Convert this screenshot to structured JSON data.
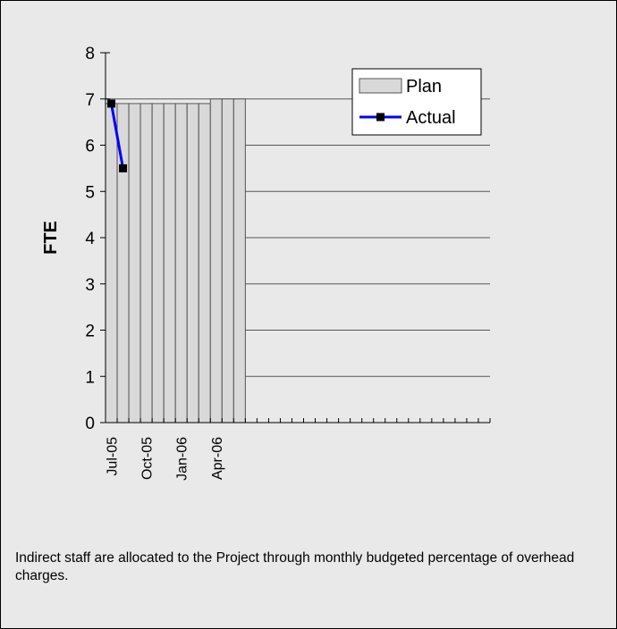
{
  "chart_data": {
    "type": "bar",
    "y_label": "FTE",
    "categories": [
      "Jul-05",
      null,
      null,
      "Oct-05",
      null,
      null,
      "Jan-06",
      null,
      null,
      "Apr-06",
      null,
      null,
      null,
      null,
      null,
      null,
      null,
      null,
      null,
      null,
      null,
      null,
      null,
      null,
      null,
      null,
      null,
      null,
      null,
      null,
      null,
      null,
      null
    ],
    "series": [
      {
        "name": "Plan",
        "type": "bar",
        "color": "#d9d9d9",
        "values": [
          6.9,
          6.9,
          6.9,
          6.9,
          6.9,
          6.9,
          6.9,
          6.9,
          6.9,
          7.0,
          7.0,
          7.0,
          null,
          null,
          null,
          null,
          null,
          null,
          null,
          null,
          null,
          null,
          null,
          null,
          null,
          null,
          null,
          null,
          null,
          null,
          null,
          null,
          null
        ]
      },
      {
        "name": "Actual",
        "type": "line",
        "color": "#0000ff",
        "values": [
          6.9,
          5.5,
          null,
          null,
          null,
          null,
          null,
          null,
          null,
          null,
          null,
          null,
          null,
          null,
          null,
          null,
          null,
          null,
          null,
          null,
          null,
          null,
          null,
          null,
          null,
          null,
          null,
          null,
          null,
          null,
          null,
          null,
          null
        ]
      }
    ],
    "ylim": [
      0,
      8
    ],
    "yticks": [
      0,
      1,
      2,
      3,
      4,
      5,
      6,
      7,
      8
    ],
    "grid": true,
    "legend": "top-right"
  },
  "note": "Indirect staff are allocated to the Project through monthly budgeted percentage of overhead charges."
}
